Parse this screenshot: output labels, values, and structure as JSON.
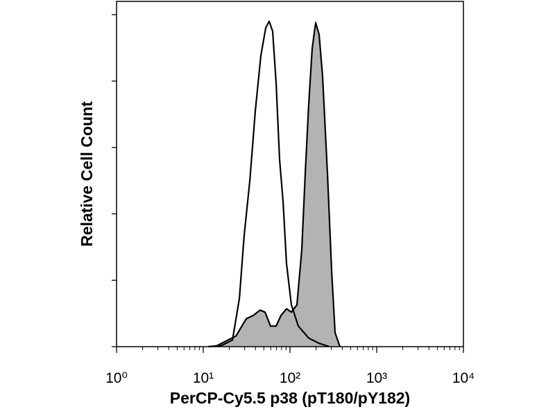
{
  "chart_data": {
    "type": "line",
    "xlabel": "PerCP-Cy5.5 p38 (pT180/pY182)",
    "ylabel": "Relative Cell Count",
    "xscale": "log",
    "xlim": [
      1,
      10000
    ],
    "xticks": [
      {
        "value": 1,
        "label": "10⁰"
      },
      {
        "value": 10,
        "label": "10¹"
      },
      {
        "value": 100,
        "label": "10²"
      },
      {
        "value": 1000,
        "label": "10³"
      },
      {
        "value": 10000,
        "label": "10⁴"
      }
    ],
    "xminorticks": [
      2,
      3,
      4,
      5,
      6,
      7,
      8,
      9,
      20,
      30,
      40,
      50,
      60,
      70,
      80,
      90,
      200,
      300,
      400,
      500,
      600,
      700,
      800,
      900,
      2000,
      3000,
      4000,
      5000,
      6000,
      7000,
      8000,
      9000
    ],
    "ylim": [
      0,
      5.2
    ],
    "yticks": [
      0,
      1,
      2,
      3,
      4,
      5
    ],
    "series": [
      {
        "color": "#000000",
        "fill": "#b3b3b3",
        "x": [
          13.7,
          18.0,
          23.8,
          31.3,
          37.7,
          45.3,
          51.5,
          59.7,
          69.2,
          78.7,
          91.2,
          103.8,
          120.2,
          136.8,
          150.0,
          164.4,
          180.3,
          197.7,
          216.8,
          237.7,
          270.4,
          302.0,
          331.1,
          376.7
        ],
        "values": [
          0,
          0.08,
          0.16,
          0.42,
          0.47,
          0.55,
          0.52,
          0.31,
          0.31,
          0.47,
          0.57,
          0.52,
          0.63,
          1.46,
          2.61,
          3.65,
          4.49,
          4.88,
          4.7,
          4.07,
          2.61,
          1.15,
          0.21,
          0
        ]
      },
      {
        "color": "#000000",
        "fill": null,
        "x": [
          11.4,
          16.4,
          21.7,
          26.1,
          29.6,
          34.4,
          39.8,
          46.1,
          52.5,
          57.5,
          63.1,
          69.2,
          75.9,
          83.2,
          91.2,
          103.8,
          124.7,
          164.4,
          216.8,
          285.8
        ],
        "values": [
          0,
          0.02,
          0.1,
          0.73,
          1.67,
          2.5,
          3.55,
          4.38,
          4.8,
          4.9,
          4.75,
          3.97,
          2.82,
          2.19,
          1.25,
          0.63,
          0.31,
          0.13,
          0.05,
          0
        ]
      }
    ]
  }
}
